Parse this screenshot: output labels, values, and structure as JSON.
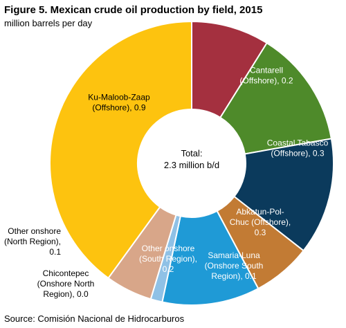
{
  "chart_data": {
    "type": "pie",
    "title": "Figure 5. Mexican crude oil production by field, 2015",
    "subtitle": "million barrels per day",
    "source": "Source: Comisión Nacional de Hidrocarburos",
    "center_text": [
      "Total:",
      "2.3 million b/d"
    ],
    "slices": [
      {
        "label": [
          "Cantarell",
          "(Offshore), 0.2"
        ],
        "value": 0.2,
        "color": "#a4303f",
        "text_color": "#ffffff"
      },
      {
        "label": [
          "Coastal Tabasco",
          "(Offshore), 0.3"
        ],
        "value": 0.3,
        "color": "#4e8a2a",
        "text_color": "#ffffff"
      },
      {
        "label": [
          "Abkatun-Pol-",
          "Chuc (Offshore),",
          "0.3"
        ],
        "value": 0.3,
        "color": "#0b3a5c",
        "text_color": "#ffffff"
      },
      {
        "label": [
          "Samaria-Luna",
          "(Onshore South",
          "Region), 0.1"
        ],
        "value": 0.15,
        "color": "#c27b34",
        "text_color": "#ffffff"
      },
      {
        "label": [
          "Other onshore",
          "(South Region),",
          "0.2"
        ],
        "value": 0.25,
        "color": "#1f9ad6",
        "text_color": "#ffffff"
      },
      {
        "label": [
          "Chicontepec",
          "(Onshore North",
          "Region), 0.0"
        ],
        "value": 0.03,
        "color": "#8fc1e6",
        "text_color": "#000000"
      },
      {
        "label": [
          "Other onshore",
          "(North Region),",
          "0.1"
        ],
        "value": 0.12,
        "color": "#d8a689",
        "text_color": "#000000"
      },
      {
        "label": [
          "Ku-Maloob-Zaap",
          "(Offshore), 0.9"
        ],
        "value": 0.9,
        "color": "#fdc30f",
        "text_color": "#000000"
      }
    ]
  }
}
